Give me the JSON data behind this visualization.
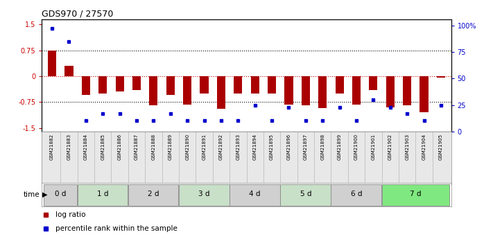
{
  "title": "GDS970 / 27570",
  "samples": [
    "GSM21882",
    "GSM21883",
    "GSM21884",
    "GSM21885",
    "GSM21886",
    "GSM21887",
    "GSM21888",
    "GSM21889",
    "GSM21890",
    "GSM21891",
    "GSM21892",
    "GSM21893",
    "GSM21894",
    "GSM21895",
    "GSM21896",
    "GSM21897",
    "GSM21898",
    "GSM21899",
    "GSM21900",
    "GSM21901",
    "GSM21902",
    "GSM21903",
    "GSM21904",
    "GSM21905"
  ],
  "log_ratio": [
    0.75,
    0.3,
    -0.55,
    -0.5,
    -0.45,
    -0.4,
    -0.85,
    -0.55,
    -0.82,
    -0.5,
    -0.95,
    -0.5,
    -0.5,
    -0.5,
    -0.82,
    -0.85,
    -0.92,
    -0.5,
    -0.82,
    -0.4,
    -0.9,
    -0.85,
    -1.05,
    -0.05
  ],
  "percentile": [
    97,
    85,
    10,
    17,
    17,
    10,
    10,
    17,
    10,
    10,
    10,
    10,
    25,
    10,
    23,
    10,
    10,
    23,
    10,
    30,
    23,
    17,
    10,
    25
  ],
  "time_groups": [
    {
      "label": "0 d",
      "start": 0,
      "end": 2,
      "color": "#d0d0d0"
    },
    {
      "label": "1 d",
      "start": 2,
      "end": 5,
      "color": "#c8dfc8"
    },
    {
      "label": "2 d",
      "start": 5,
      "end": 8,
      "color": "#d0d0d0"
    },
    {
      "label": "3 d",
      "start": 8,
      "end": 11,
      "color": "#c8dfc8"
    },
    {
      "label": "4 d",
      "start": 11,
      "end": 14,
      "color": "#d0d0d0"
    },
    {
      "label": "5 d",
      "start": 14,
      "end": 17,
      "color": "#c8dfc8"
    },
    {
      "label": "6 d",
      "start": 17,
      "end": 20,
      "color": "#d0d0d0"
    },
    {
      "label": "7 d",
      "start": 20,
      "end": 24,
      "color": "#80e880"
    }
  ],
  "ylim_left": [
    -1.6,
    1.65
  ],
  "ylim_right": [
    0,
    106
  ],
  "yticks_left": [
    -1.5,
    -0.75,
    0.0,
    0.75,
    1.5
  ],
  "ytick_labels_left": [
    "-1.5",
    "-0.75",
    "0",
    "0.75",
    "1.5"
  ],
  "yticks_right": [
    0,
    25,
    50,
    75,
    100
  ],
  "ytick_labels_right": [
    "0",
    "25",
    "50",
    "75",
    "100%"
  ],
  "bar_color": "#aa0000",
  "square_color": "#0000cc",
  "bar_width": 0.5,
  "legend_items": [
    "log ratio",
    "percentile rank within the sample"
  ],
  "legend_colors": [
    "#aa0000",
    "#0000cc"
  ],
  "bg_color": "#ffffff"
}
